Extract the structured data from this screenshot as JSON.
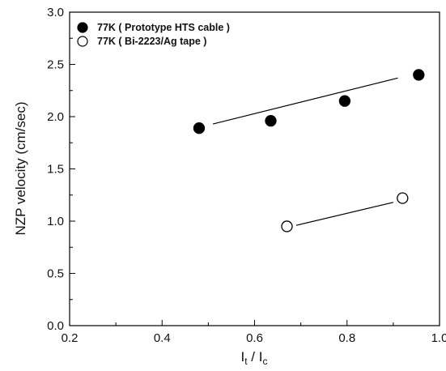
{
  "chart_data": {
    "type": "scatter",
    "title": "",
    "xlabel": "I_t / I_c",
    "xlabel_parts": {
      "main1": "I",
      "sub1": "t",
      "sep": " / ",
      "main2": "I",
      "sub2": "c"
    },
    "ylabel": "NZP velocity (cm/sec)",
    "xlim": [
      0.2,
      1.0
    ],
    "ylim": [
      0.0,
      3.0
    ],
    "xticks": [
      "0.2",
      "0.4",
      "0.6",
      "0.8",
      "1.0"
    ],
    "yticks": [
      "0.0",
      "0.5",
      "1.0",
      "1.5",
      "2.0",
      "2.5",
      "3.0"
    ],
    "grid": false,
    "legend_position": "top-left",
    "series": [
      {
        "name": "77K ( Prototype HTS cable )",
        "marker": "filled-circle",
        "color": "#000000",
        "x": [
          0.48,
          0.635,
          0.795,
          0.955
        ],
        "y": [
          1.89,
          1.96,
          2.15,
          2.4
        ],
        "fit_line": {
          "x": [
            0.51,
            0.91
          ],
          "y": [
            1.93,
            2.37
          ]
        }
      },
      {
        "name": "77K ( Bi-2223/Ag tape )",
        "marker": "open-circle",
        "color": "#000000",
        "x": [
          0.67,
          0.92
        ],
        "y": [
          0.95,
          1.22
        ],
        "fit_line": {
          "x": [
            0.69,
            0.9
          ],
          "y": [
            0.96,
            1.18
          ]
        }
      }
    ]
  }
}
